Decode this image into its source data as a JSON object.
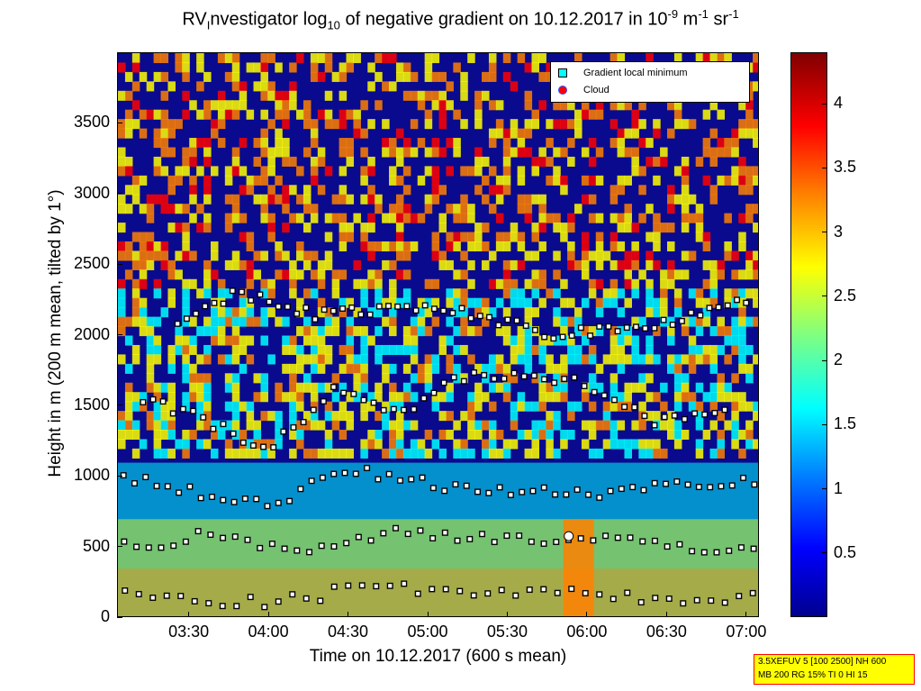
{
  "title": {
    "prefix": "RV",
    "sub1": "I",
    "mid1": "nvestigator log",
    "sub2": "10",
    "mid2": " of negative gradient on 10.12.2017 in 10",
    "sup1": "-9",
    "mid3": " m",
    "sup2": "-1",
    "mid4": " sr",
    "sup3": "-1"
  },
  "xlabel": "Time on 10.12.2017 (600 s mean)",
  "ylabel": "Height in m (200 m mean, tilted by 1°)",
  "legend": {
    "gradient_label": "Gradient local minimum",
    "cloud_label": "Cloud",
    "gradient_color": "#00ffff",
    "cloud_color": "#ff0000"
  },
  "info_lines": [
    "3.5XEFUV 5 [100 2500] NH 600",
    "MB 200 RG 15% TI 0 HI 15"
  ],
  "chart_data": {
    "type": "heatmap",
    "x_ticks": [
      "03:30",
      "04:00",
      "04:30",
      "05:00",
      "05:30",
      "06:00",
      "06:30",
      "07:00"
    ],
    "x_tick_hours": [
      3.5,
      4.0,
      4.5,
      5.0,
      5.5,
      6.0,
      6.5,
      7.0
    ],
    "xlim_hours": [
      3.05,
      7.08
    ],
    "y_ticks": [
      0,
      500,
      1000,
      1500,
      2000,
      2500,
      3000,
      3500
    ],
    "ylim": [
      0,
      4000
    ],
    "colorbar": {
      "ticks": [
        0.5,
        1,
        1.5,
        2,
        2.5,
        3,
        3.5,
        4
      ],
      "range": [
        0,
        4.4
      ],
      "colormap": "jet"
    },
    "layers": [
      {
        "x": [
          3.05,
          3.3,
          3.5,
          3.8,
          4.0,
          4.3,
          4.5,
          5.0,
          5.5,
          5.65,
          6.2,
          6.5,
          7.08
        ],
        "y": [
          200,
          150,
          120,
          110,
          110,
          150,
          220,
          200,
          160,
          200,
          140,
          140,
          140
        ]
      },
      {
        "x": [
          3.05,
          3.3,
          3.6,
          4.0,
          4.3,
          4.8,
          5.3,
          5.65,
          6.3,
          6.7,
          7.08
        ],
        "y": [
          580,
          500,
          600,
          520,
          480,
          610,
          580,
          560,
          540,
          500,
          480
        ]
      },
      {
        "x": [
          3.05,
          3.5,
          4.0,
          4.5,
          5.0,
          5.5,
          6.0,
          6.5,
          7.08
        ],
        "y": [
          1000,
          900,
          800,
          1050,
          950,
          900,
          880,
          950,
          980
        ]
      },
      {
        "x": [
          3.2,
          3.6,
          4.0,
          4.4,
          4.8,
          5.2,
          5.6,
          6.0,
          6.4,
          6.9
        ],
        "y": [
          1550,
          1400,
          1200,
          1600,
          1450,
          1700,
          1750,
          1650,
          1400,
          1500
        ]
      },
      {
        "x": [
          3.4,
          3.8,
          4.3,
          4.8,
          5.3,
          5.8,
          6.5,
          7.0
        ],
        "y": [
          2050,
          2300,
          2150,
          2200,
          2150,
          2000,
          2100,
          2250
        ]
      }
    ],
    "cloud": {
      "x": 5.88,
      "y": 580
    },
    "colors": {
      "background": "#0a0a8e",
      "low": "#00ffff",
      "mid": "#ffff00",
      "high": "#ff8000",
      "top": "#ff0000"
    }
  }
}
